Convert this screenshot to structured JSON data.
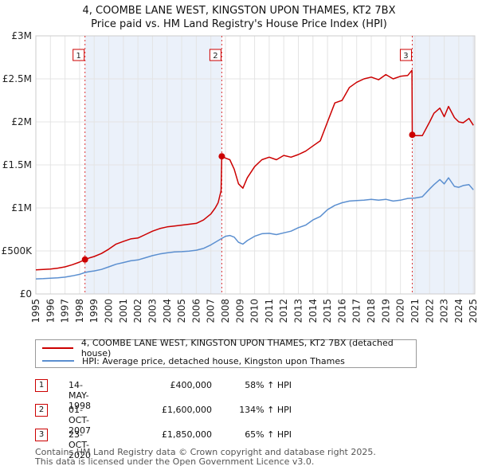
{
  "title_line1": "4, COOMBE LANE WEST, KINGSTON UPON THAMES, KT2 7BX",
  "title_line2": "Price paid vs. HM Land Registry's House Price Index (HPI)",
  "chart_data": {
    "type": "line",
    "title": "4, COOMBE LANE WEST, KINGSTON UPON THAMES, KT2 7BX",
    "subtitle": "Price paid vs. HM Land Registry's House Price Index (HPI)",
    "xlabel": "",
    "ylabel": "",
    "xlim": [
      1995,
      2025.1
    ],
    "ylim": [
      0,
      3000000
    ],
    "y_ticks": [
      {
        "value": 0,
        "label": "£0"
      },
      {
        "value": 500000,
        "label": "£500K"
      },
      {
        "value": 1000000,
        "label": "£1M"
      },
      {
        "value": 1500000,
        "label": "£1.5M"
      },
      {
        "value": 2000000,
        "label": "£2M"
      },
      {
        "value": 2500000,
        "label": "£2.5M"
      },
      {
        "value": 3000000,
        "label": "£3M"
      }
    ],
    "x_ticks": [
      1995,
      1996,
      1997,
      1998,
      1999,
      2000,
      2001,
      2002,
      2003,
      2004,
      2005,
      2006,
      2007,
      2008,
      2009,
      2010,
      2011,
      2012,
      2013,
      2014,
      2015,
      2016,
      2017,
      2018,
      2019,
      2020,
      2021,
      2022,
      2023,
      2024,
      2025
    ],
    "grid": true,
    "shaded_spans": [
      [
        1998.37,
        2007.75
      ],
      [
        2020.81,
        2025.1
      ]
    ],
    "series": [
      {
        "name": "4, COOMBE LANE WEST, KINGSTON UPON THAMES, KT2 7BX (detached house)",
        "color": "#cc0000",
        "x": [
          1995,
          1995.5,
          1996,
          1996.5,
          1997,
          1997.5,
          1998,
          1998.37,
          1998.7,
          1999,
          1999.5,
          2000,
          2000.5,
          2001,
          2001.5,
          2002,
          2002.5,
          2003,
          2003.5,
          2004,
          2004.5,
          2005,
          2005.5,
          2006,
          2006.5,
          2007,
          2007.3,
          2007.5,
          2007.7,
          2007.75,
          2008,
          2008.3,
          2008.6,
          2008.9,
          2009.2,
          2009.5,
          2010,
          2010.5,
          2011,
          2011.5,
          2012,
          2012.5,
          2013,
          2013.5,
          2014,
          2014.5,
          2015,
          2015.5,
          2016,
          2016.5,
          2017,
          2017.5,
          2018,
          2018.5,
          2019,
          2019.5,
          2020,
          2020.5,
          2020.79,
          2020.81,
          2021,
          2021.5,
          2022,
          2022.3,
          2022.7,
          2023,
          2023.3,
          2023.7,
          2024,
          2024.3,
          2024.7,
          2025
        ],
        "values": [
          280000,
          285000,
          290000,
          300000,
          315000,
          340000,
          370000,
          400000,
          420000,
          435000,
          470000,
          520000,
          580000,
          610000,
          640000,
          650000,
          690000,
          730000,
          760000,
          780000,
          790000,
          800000,
          810000,
          820000,
          860000,
          930000,
          1000000,
          1060000,
          1200000,
          1600000,
          1580000,
          1560000,
          1450000,
          1280000,
          1230000,
          1350000,
          1480000,
          1560000,
          1590000,
          1560000,
          1610000,
          1590000,
          1620000,
          1660000,
          1720000,
          1780000,
          2000000,
          2220000,
          2250000,
          2400000,
          2460000,
          2500000,
          2520000,
          2490000,
          2550000,
          2500000,
          2530000,
          2540000,
          2600000,
          1850000,
          1840000,
          1840000,
          2000000,
          2100000,
          2160000,
          2060000,
          2180000,
          2050000,
          2000000,
          1990000,
          2040000,
          1960000
        ]
      },
      {
        "name": "HPI: Average price, detached house, Kingston upon Thames",
        "color": "#5b8fd0",
        "x": [
          1995,
          1995.5,
          1996,
          1996.5,
          1997,
          1997.5,
          1998,
          1998.37,
          1998.7,
          1999,
          1999.5,
          2000,
          2000.5,
          2001,
          2001.5,
          2002,
          2002.5,
          2003,
          2003.5,
          2004,
          2004.5,
          2005,
          2005.5,
          2006,
          2006.5,
          2007,
          2007.5,
          2008,
          2008.3,
          2008.6,
          2008.9,
          2009.2,
          2009.5,
          2010,
          2010.5,
          2011,
          2011.5,
          2012,
          2012.5,
          2013,
          2013.5,
          2014,
          2014.5,
          2015,
          2015.5,
          2016,
          2016.5,
          2017,
          2017.5,
          2018,
          2018.5,
          2019,
          2019.5,
          2020,
          2020.5,
          2021,
          2021.5,
          2022,
          2022.3,
          2022.7,
          2023,
          2023.3,
          2023.7,
          2024,
          2024.3,
          2024.7,
          2025
        ],
        "values": [
          175000,
          178000,
          182000,
          187000,
          195000,
          210000,
          228000,
          250000,
          260000,
          268000,
          285000,
          315000,
          345000,
          365000,
          385000,
          395000,
          420000,
          445000,
          465000,
          478000,
          488000,
          492000,
          498000,
          508000,
          530000,
          570000,
          620000,
          670000,
          680000,
          660000,
          600000,
          580000,
          620000,
          670000,
          700000,
          705000,
          690000,
          710000,
          730000,
          770000,
          800000,
          860000,
          900000,
          980000,
          1030000,
          1060000,
          1080000,
          1085000,
          1090000,
          1100000,
          1090000,
          1100000,
          1080000,
          1090000,
          1110000,
          1115000,
          1130000,
          1220000,
          1270000,
          1330000,
          1280000,
          1350000,
          1250000,
          1240000,
          1260000,
          1270000,
          1210000
        ]
      }
    ],
    "sale_markers": [
      {
        "label": "1",
        "x": 1998.37,
        "value": 400000
      },
      {
        "label": "2",
        "x": 2007.75,
        "value": 1600000
      },
      {
        "label": "3",
        "x": 2020.81,
        "value": 1850000
      }
    ]
  },
  "legend": {
    "property_label": "4, COOMBE LANE WEST, KINGSTON UPON THAMES, KT2 7BX (detached house)",
    "hpi_label": "HPI: Average price, detached house, Kingston upon Thames",
    "property_color": "#cc0000",
    "hpi_color": "#5b8fd0"
  },
  "sales": [
    {
      "num": "1",
      "date": "14-MAY-1998",
      "price": "£400,000",
      "hpi": "58% ↑ HPI"
    },
    {
      "num": "2",
      "date": "01-OCT-2007",
      "price": "£1,600,000",
      "hpi": "134% ↑ HPI"
    },
    {
      "num": "3",
      "date": "23-OCT-2020",
      "price": "£1,850,000",
      "hpi": "65% ↑ HPI"
    }
  ],
  "footer_line1": "Contains HM Land Registry data © Crown copyright and database right 2025.",
  "footer_line2": "This data is licensed under the Open Government Licence v3.0."
}
